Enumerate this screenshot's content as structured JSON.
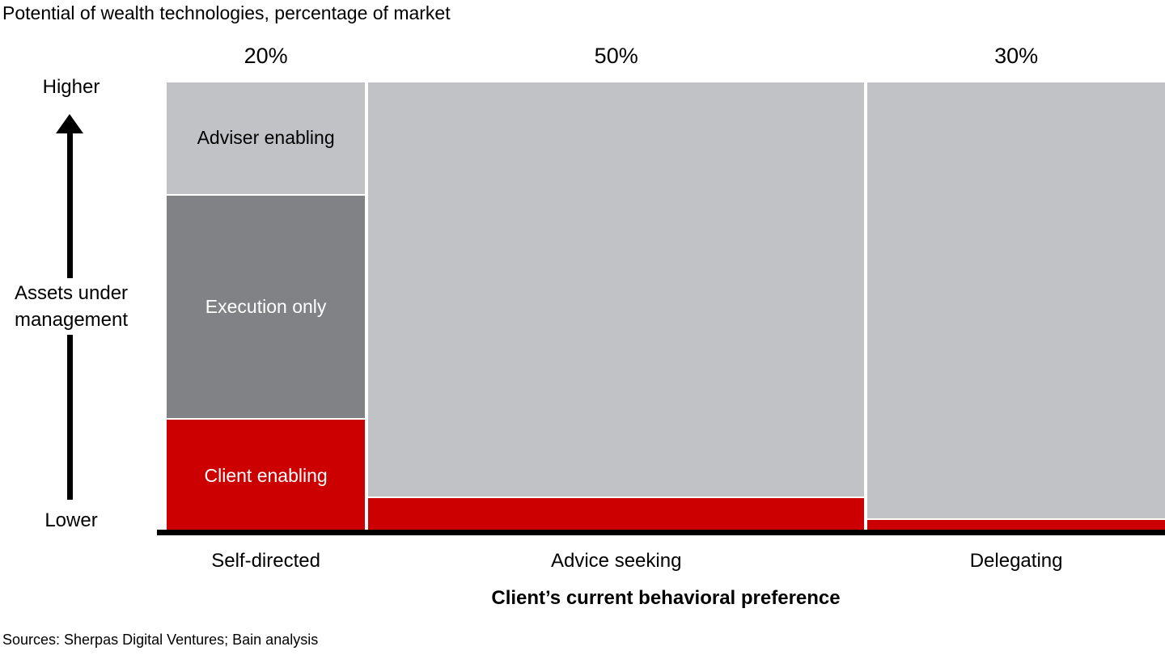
{
  "title": "Potential of wealth technologies, percentage of market",
  "source": "Sources: Sherpas Digital Ventures; Bain analysis",
  "colors": {
    "light_gray": "#c1c2c5",
    "dark_gray": "#808285",
    "red": "#cc0000",
    "axis_black": "#000000"
  },
  "y_axis": {
    "higher": "Higher",
    "label_line1": "Assets under",
    "label_line2": "management",
    "lower": "Lower"
  },
  "x_axis": {
    "title": "Client’s current behavioral preference"
  },
  "chart_data": {
    "type": "bar",
    "variant": "marimekko-stacked",
    "title": "Potential of wealth technologies, percentage of market",
    "xlabel": "Client’s current behavioral preference",
    "y_axis_qualitative_labels": [
      "Higher",
      "Assets under management",
      "Lower"
    ],
    "categories": [
      "Self-directed",
      "Advice seeking",
      "Delegating"
    ],
    "column_widths_pct": [
      20,
      50,
      30
    ],
    "columns": [
      {
        "label": "Self-directed",
        "header": "20%",
        "width_pct": 20,
        "segments": [
          {
            "name": "adviser-enabling",
            "label": "Adviser enabling",
            "color_key": "light_gray",
            "height_pct": 25,
            "text_color": "#000000"
          },
          {
            "name": "execution-only",
            "label": "Execution only",
            "color_key": "dark_gray",
            "height_pct": 50,
            "text_color": "#ffffff"
          },
          {
            "name": "client-enabling",
            "label": "Client enabling",
            "color_key": "red",
            "height_pct": 25,
            "text_color": "#ffffff"
          }
        ]
      },
      {
        "label": "Advice seeking",
        "header": "50%",
        "width_pct": 50,
        "segments": [
          {
            "name": "unlabeled-gray",
            "label": "",
            "color_key": "light_gray",
            "height_pct": 92.5,
            "text_color": "#000000"
          },
          {
            "name": "client-enabling",
            "label": "",
            "color_key": "red",
            "height_pct": 7.5,
            "text_color": "#ffffff"
          }
        ]
      },
      {
        "label": "Delegating",
        "header": "30%",
        "width_pct": 30,
        "segments": [
          {
            "name": "unlabeled-gray",
            "label": "",
            "color_key": "light_gray",
            "height_pct": 97.5,
            "text_color": "#000000"
          },
          {
            "name": "client-enabling",
            "label": "",
            "color_key": "red",
            "height_pct": 2.5,
            "text_color": "#ffffff"
          }
        ]
      }
    ]
  }
}
